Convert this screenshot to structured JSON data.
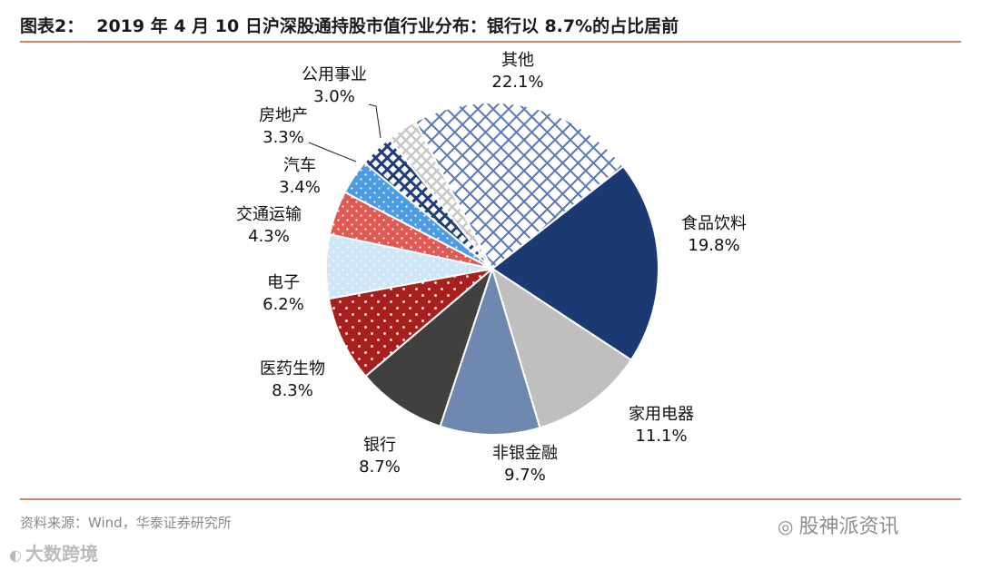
{
  "header": {
    "figure_label": "图表2：",
    "title": "2019 年 4 月 10 日沪深股通持股市值行业分布：银行以 8.7%的占比居前"
  },
  "footer": {
    "source": "资料来源：Wind，华泰证券研究所",
    "watermark_right": "股神派资讯",
    "watermark_left": "大数跨境"
  },
  "colors": {
    "rule": "#d9826a",
    "food": "#1b3a73",
    "appliance": "#bfbfbf",
    "nonbank": "#6f88b0",
    "bank": "#404040",
    "pharma": "#a8201e",
    "electronics": "#cfe6f7",
    "transport": "#e05a55",
    "auto": "#4d9be0",
    "realestate": "#1f3d7a",
    "utilities": "#c8c8c8",
    "other": "#5a78b8"
  },
  "chart_data": {
    "type": "pie",
    "title": "2019 年 4 月 10 日沪深股通持股市值行业分布",
    "unit": "%",
    "start_angle_deg": 52,
    "direction": "clockwise",
    "slices": [
      {
        "key": "food",
        "label": "食品饮料",
        "value": 19.8,
        "value_label": "19.8%"
      },
      {
        "key": "appliance",
        "label": "家用电器",
        "value": 11.1,
        "value_label": "11.1%"
      },
      {
        "key": "nonbank",
        "label": "非银金融",
        "value": 9.7,
        "value_label": "9.7%"
      },
      {
        "key": "bank",
        "label": "银行",
        "value": 8.7,
        "value_label": "8.7%"
      },
      {
        "key": "pharma",
        "label": "医药生物",
        "value": 8.3,
        "value_label": "8.3%"
      },
      {
        "key": "electronics",
        "label": "电子",
        "value": 6.2,
        "value_label": "6.2%"
      },
      {
        "key": "transport",
        "label": "交通运输",
        "value": 4.3,
        "value_label": "4.3%"
      },
      {
        "key": "auto",
        "label": "汽车",
        "value": 3.4,
        "value_label": "3.4%"
      },
      {
        "key": "realestate",
        "label": "房地产",
        "value": 3.3,
        "value_label": "3.3%"
      },
      {
        "key": "utilities",
        "label": "公用事业",
        "value": 3.0,
        "value_label": "3.0%"
      },
      {
        "key": "other",
        "label": "其他",
        "value": 22.1,
        "value_label": "22.1%"
      }
    ]
  }
}
